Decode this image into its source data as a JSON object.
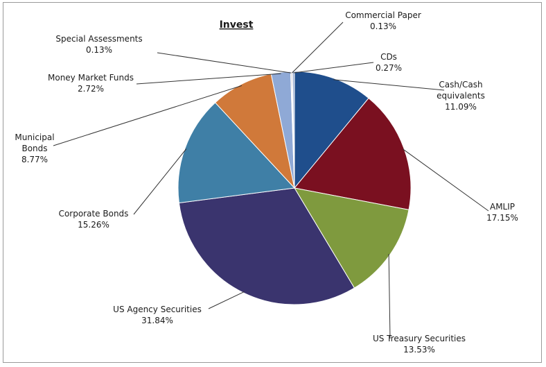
{
  "chart_data": {
    "type": "pie",
    "title": "Invest",
    "slices": [
      {
        "label": "Cash/Cash equivalents",
        "value": 11.09,
        "pct_label": "11.09%",
        "color": "#1f4e8c"
      },
      {
        "label": "AMLIP",
        "value": 17.15,
        "pct_label": "17.15%",
        "color": "#7a1020"
      },
      {
        "label": "US Treasury Securities",
        "value": 13.53,
        "pct_label": "13.53%",
        "color": "#7f9a3e"
      },
      {
        "label": "US Agency Securities",
        "value": 31.84,
        "pct_label": "31.84%",
        "color": "#3a346e"
      },
      {
        "label": "Corporate Bonds",
        "value": 15.26,
        "pct_label": "15.26%",
        "color": "#3f7fa6"
      },
      {
        "label": "Municipal Bonds",
        "value": 8.77,
        "pct_label": "8.77%",
        "color": "#d0793a"
      },
      {
        "label": "Money Market Funds",
        "value": 2.72,
        "pct_label": "2.72%",
        "color": "#8fa9d6"
      },
      {
        "label": "Special Assessments",
        "value": 0.13,
        "pct_label": "0.13%",
        "color": "#b9b9b9"
      },
      {
        "label": "Commercial Paper",
        "value": 0.13,
        "pct_label": "0.13%",
        "color": "#6a6a9a"
      },
      {
        "label": "CDs",
        "value": 0.27,
        "pct_label": "0.27%",
        "color": "#9aaed0"
      }
    ]
  }
}
